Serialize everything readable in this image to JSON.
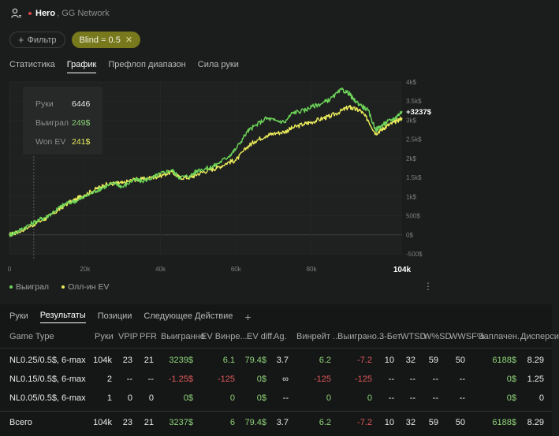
{
  "header": {
    "name": "Hero",
    "network": "GG Network"
  },
  "filters": {
    "add_label": "Фильтр",
    "blind_label": "Blind = 0.5"
  },
  "top_tabs": [
    {
      "label": "Статистика",
      "active": false
    },
    {
      "label": "График",
      "active": true
    },
    {
      "label": "Префлоп диапазон",
      "active": false
    },
    {
      "label": "Сила руки",
      "active": false
    }
  ],
  "tooltip": {
    "hands_label": "Руки",
    "hands_value": "6446",
    "won_label": "Выиграл",
    "won_value": "249$",
    "ev_label": "Won EV",
    "ev_value": "241$"
  },
  "chart_data": {
    "type": "line",
    "x_ticks": [
      "0",
      "20k",
      "40k",
      "60k",
      "80k"
    ],
    "x_last_label": "104k",
    "y_ticks": [
      "4k$",
      "3.5k$",
      "3k$",
      "2.5k$",
      "2k$",
      "1.5k$",
      "1k$",
      "500$",
      "0$",
      "-500$"
    ],
    "xlim": [
      0,
      104000
    ],
    "ylim": [
      -500,
      4000
    ],
    "end_label": "+3237$",
    "series": [
      {
        "name": "Выиграл",
        "color": "#6ed65a",
        "x": [
          0,
          2000,
          5000,
          8000,
          10000,
          13000,
          15000,
          18000,
          20000,
          23000,
          25000,
          28000,
          30000,
          33000,
          35000,
          38000,
          40000,
          43000,
          45000,
          48000,
          50000,
          53000,
          55000,
          58000,
          60000,
          63000,
          65000,
          68000,
          70000,
          73000,
          75000,
          78000,
          80000,
          83000,
          85000,
          88000,
          90000,
          91000,
          93000,
          95000,
          97000,
          98500,
          100000,
          102000,
          104000
        ],
        "y": [
          0,
          80,
          250,
          400,
          480,
          700,
          820,
          900,
          1000,
          1150,
          1250,
          1350,
          1250,
          1450,
          1400,
          1500,
          1600,
          1700,
          1500,
          1550,
          1700,
          1750,
          1850,
          2050,
          2250,
          2700,
          2850,
          3050,
          3000,
          2950,
          3200,
          3250,
          3350,
          3450,
          3550,
          3800,
          3700,
          3550,
          3400,
          3250,
          2750,
          2850,
          2950,
          3050,
          3237
        ]
      },
      {
        "name": "Олл-ин EV",
        "color": "#ecec5c",
        "x": [
          0,
          2000,
          5000,
          8000,
          10000,
          13000,
          15000,
          18000,
          20000,
          23000,
          25000,
          28000,
          30000,
          33000,
          35000,
          38000,
          40000,
          43000,
          45000,
          48000,
          50000,
          53000,
          55000,
          58000,
          60000,
          63000,
          65000,
          68000,
          70000,
          73000,
          75000,
          78000,
          80000,
          83000,
          85000,
          88000,
          90000,
          91000,
          93000,
          95000,
          97000,
          98500,
          100000,
          102000,
          104000
        ],
        "y": [
          0,
          60,
          200,
          350,
          450,
          650,
          800,
          950,
          1050,
          1200,
          1300,
          1350,
          1350,
          1450,
          1450,
          1500,
          1550,
          1650,
          1500,
          1500,
          1600,
          1700,
          1750,
          1900,
          1950,
          2300,
          2450,
          2600,
          2650,
          2700,
          2800,
          2900,
          2950,
          3050,
          3100,
          3250,
          3350,
          3300,
          3250,
          3000,
          2650,
          2750,
          2850,
          2950,
          3060
        ]
      }
    ]
  },
  "legend": [
    {
      "label": "Выиграл",
      "color": "#6ed65a"
    },
    {
      "label": "Олл-ин EV",
      "color": "#ecec5c"
    }
  ],
  "bottom_tabs": [
    {
      "label": "Руки",
      "active": false
    },
    {
      "label": "Результаты",
      "active": true
    },
    {
      "label": "Позиции",
      "active": false
    },
    {
      "label": "Следующее Действие",
      "active": false
    }
  ],
  "table": {
    "headers": [
      "Game Type",
      "Руки",
      "VPIP",
      "PFR",
      "Выигранно",
      "EV Винре...",
      "EV diff.",
      "Ag.",
      "Винрейт ...",
      "Выиграно...",
      "3-Бет",
      "WTSD",
      "W%SD",
      "WWSF%",
      "Заплачен...",
      "Дисперси"
    ],
    "rows": [
      [
        "NL0.25/0.5$, 6-max",
        "104k",
        "23",
        "21",
        "3239$",
        "6.1",
        "79.4$",
        "3.7",
        "6.2",
        "-7.2",
        "10",
        "32",
        "59",
        "50",
        "6188$",
        "8.29"
      ],
      [
        "NL0.15/0.5$, 6-max",
        "2",
        "--",
        "--",
        "-1.25$",
        "-125",
        "0$",
        "∞",
        "-125",
        "-125",
        "--",
        "--",
        "--",
        "--",
        "0$",
        "1.25"
      ],
      [
        "NL0.05/0.5$, 6-max",
        "1",
        "0",
        "0",
        "0$",
        "0",
        "0$",
        "--",
        "0",
        "0",
        "--",
        "--",
        "--",
        "--",
        "0$",
        "0"
      ]
    ],
    "total": [
      "Всего",
      "104k",
      "23",
      "21",
      "3237$",
      "6",
      "79.4$",
      "3.7",
      "6.2",
      "-7.2",
      "10",
      "32",
      "59",
      "50",
      "6188$",
      "8.29"
    ]
  }
}
